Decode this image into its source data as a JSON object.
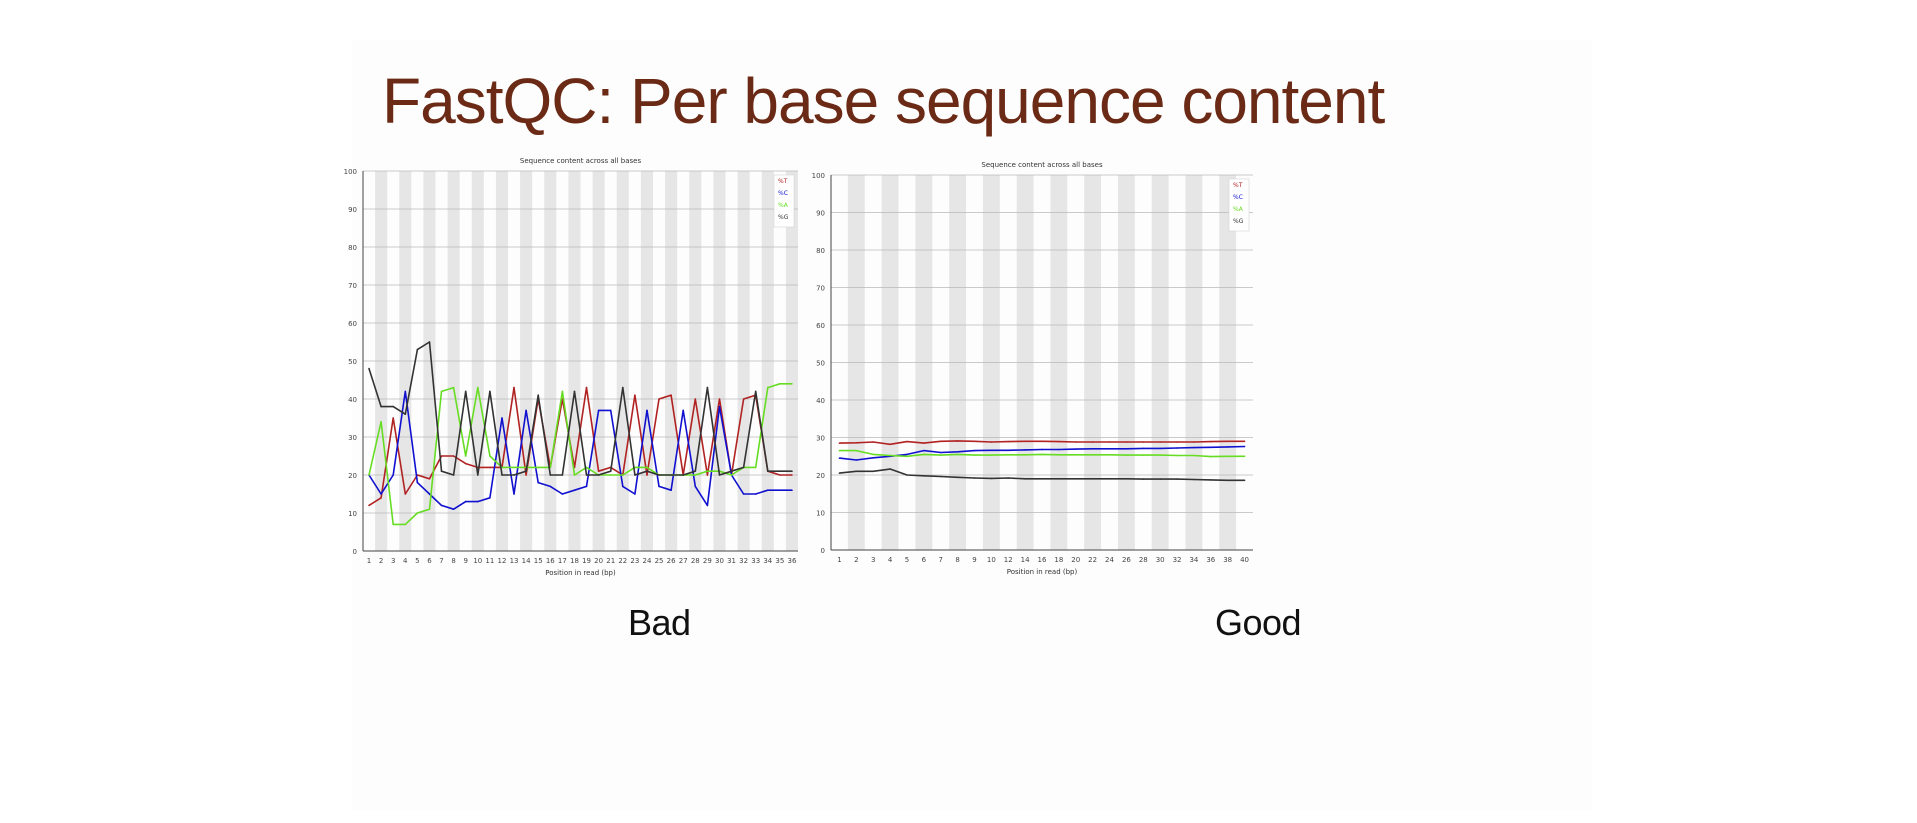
{
  "slide": {
    "title": "FastQC: Per base sequence content",
    "captions": {
      "left": "Bad",
      "right": "Good"
    }
  },
  "colors": {
    "T": "#b22222",
    "C": "#1010d0",
    "A": "#66dd22",
    "G": "#333333",
    "band": "#e6e6e6",
    "title": "#6b2a16"
  },
  "chart_data": [
    {
      "type": "line",
      "title": "Sequence content across all bases",
      "xlabel": "Position in read (bp)",
      "ylabel": "",
      "ylim": [
        0,
        100
      ],
      "yticks": [
        0,
        10,
        20,
        30,
        40,
        50,
        60,
        70,
        80,
        90,
        100
      ],
      "categories": [
        "1",
        "2",
        "3",
        "4",
        "5",
        "6",
        "7",
        "8",
        "9",
        "10",
        "11",
        "12",
        "13",
        "14",
        "15",
        "16",
        "17",
        "18",
        "19",
        "20",
        "21",
        "22",
        "23",
        "24",
        "25",
        "26",
        "27",
        "28",
        "29",
        "30",
        "31",
        "32",
        "33",
        "34",
        "35",
        "36"
      ],
      "legend_position": "top-right",
      "grid": true,
      "series": [
        {
          "name": "%T",
          "color": "#b22222",
          "values": [
            12,
            14,
            35,
            15,
            20,
            19,
            25,
            25,
            23,
            22,
            22,
            22,
            43,
            20,
            40,
            22,
            40,
            22,
            43,
            21,
            22,
            20,
            41,
            20,
            40,
            41,
            20,
            40,
            20,
            40,
            20,
            40,
            41,
            21,
            20,
            20
          ]
        },
        {
          "name": "%C",
          "color": "#1010d0",
          "values": [
            20,
            15,
            20,
            42,
            18,
            15,
            12,
            11,
            13,
            13,
            14,
            35,
            15,
            37,
            18,
            17,
            15,
            16,
            17,
            37,
            37,
            17,
            15,
            37,
            17,
            16,
            37,
            17,
            12,
            38,
            20,
            15,
            15,
            16,
            16,
            16
          ]
        },
        {
          "name": "%A",
          "color": "#66dd22",
          "values": [
            20,
            34,
            7,
            7,
            10,
            11,
            42,
            43,
            25,
            43,
            25,
            22,
            22,
            22,
            22,
            22,
            42,
            20,
            22,
            20,
            20,
            20,
            22,
            22,
            20,
            20,
            20,
            20,
            21,
            21,
            20,
            22,
            22,
            43,
            44,
            44
          ]
        },
        {
          "name": "%G",
          "color": "#333333",
          "values": [
            48,
            38,
            38,
            36,
            53,
            55,
            21,
            20,
            42,
            20,
            42,
            20,
            20,
            21,
            41,
            20,
            20,
            42,
            20,
            20,
            21,
            43,
            20,
            21,
            20,
            20,
            20,
            21,
            43,
            20,
            21,
            22,
            42,
            21,
            21,
            21
          ]
        }
      ]
    },
    {
      "type": "line",
      "title": "Sequence content across all bases",
      "xlabel": "Position in read (bp)",
      "ylabel": "",
      "ylim": [
        0,
        100
      ],
      "yticks": [
        0,
        10,
        20,
        30,
        40,
        50,
        60,
        70,
        80,
        90,
        100
      ],
      "categories": [
        "1",
        "2",
        "3",
        "4",
        "5",
        "6",
        "7",
        "8",
        "9",
        "10",
        "12",
        "14",
        "16",
        "18",
        "20",
        "22",
        "24",
        "26",
        "28",
        "30",
        "32",
        "34",
        "36",
        "38",
        "40"
      ],
      "legend_position": "top-right",
      "grid": true,
      "series": [
        {
          "name": "%T",
          "color": "#b22222",
          "values": [
            28.5,
            28.6,
            28.8,
            28.2,
            28.9,
            28.5,
            29.0,
            29.1,
            29.0,
            28.8,
            28.9,
            29.0,
            29.0,
            28.9,
            28.8,
            28.8,
            28.8,
            28.8,
            28.8,
            28.8,
            28.8,
            28.8,
            28.9,
            29.0,
            29.0
          ]
        },
        {
          "name": "%C",
          "color": "#1010d0",
          "values": [
            24.5,
            24.0,
            24.6,
            25.0,
            25.5,
            26.5,
            26.0,
            26.2,
            26.5,
            26.6,
            26.6,
            26.7,
            26.8,
            26.8,
            26.9,
            27.0,
            27.0,
            27.0,
            27.1,
            27.1,
            27.2,
            27.3,
            27.4,
            27.5,
            27.6
          ]
        },
        {
          "name": "%A",
          "color": "#66dd22",
          "values": [
            26.5,
            26.5,
            25.5,
            25.2,
            25.0,
            25.5,
            25.3,
            25.5,
            25.3,
            25.3,
            25.4,
            25.4,
            25.5,
            25.4,
            25.4,
            25.4,
            25.4,
            25.3,
            25.3,
            25.3,
            25.2,
            25.2,
            24.9,
            25.0,
            25.0
          ]
        },
        {
          "name": "%G",
          "color": "#333333",
          "values": [
            20.5,
            21.0,
            21.0,
            21.6,
            20.0,
            19.8,
            19.6,
            19.4,
            19.2,
            19.1,
            19.2,
            19.0,
            19.0,
            19.0,
            19.0,
            19.0,
            19.0,
            19.0,
            18.9,
            18.9,
            18.9,
            18.8,
            18.7,
            18.6,
            18.6
          ]
        }
      ]
    }
  ]
}
